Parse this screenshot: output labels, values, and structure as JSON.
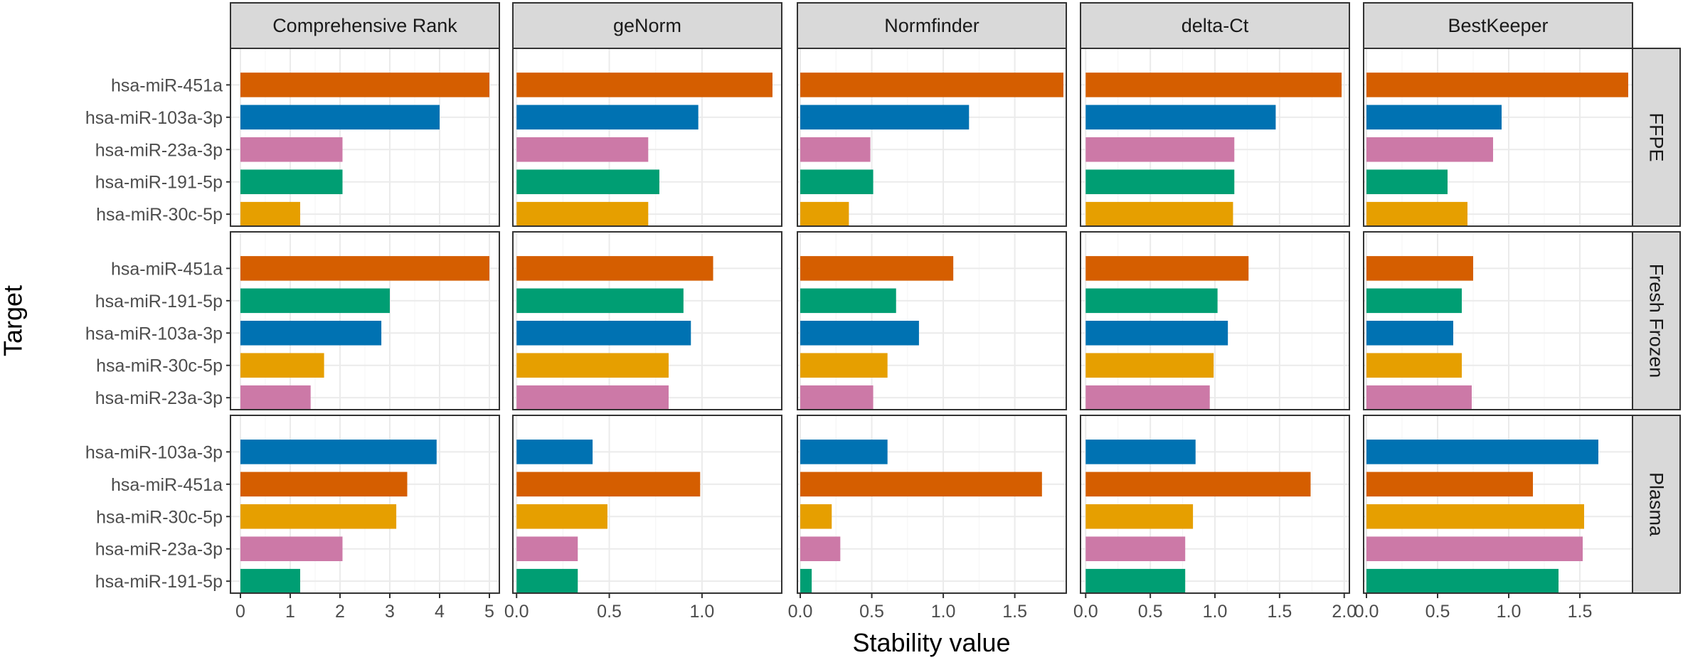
{
  "chart_data": {
    "type": "bar",
    "orientation": "horizontal",
    "xlabel": "Stability value",
    "ylabel": "Target",
    "grid": true,
    "legend": "none",
    "colors": {
      "hsa-miR-451a": "#D55E00",
      "hsa-miR-103a-3p": "#0072B2",
      "hsa-miR-23a-3p": "#CC79A7",
      "hsa-miR-191-5p": "#009E73",
      "hsa-miR-30c-5p": "#E69F00"
    },
    "methods": [
      {
        "name": "Comprehensive Rank",
        "xlim": [
          -0.2,
          5.2
        ],
        "ticks": [
          "0",
          "1",
          "2",
          "3",
          "4",
          "5"
        ]
      },
      {
        "name": "geNorm",
        "xlim": [
          -0.02,
          1.43
        ],
        "ticks": [
          "0.0",
          "0.5",
          "1.0"
        ]
      },
      {
        "name": "Normfinder",
        "xlim": [
          -0.02,
          1.86
        ],
        "ticks": [
          "0.0",
          "0.5",
          "1.0",
          "1.5"
        ]
      },
      {
        "name": "delta-Ct",
        "xlim": [
          -0.04,
          2.04
        ],
        "ticks": [
          "0.0",
          "0.5",
          "1.0",
          "1.5",
          "2.0"
        ]
      },
      {
        "name": "BestKeeper",
        "xlim": [
          -0.02,
          1.87
        ],
        "ticks": [
          "0.0",
          "0.5",
          "1.0",
          "1.5"
        ]
      }
    ],
    "sample_types": [
      {
        "name": "FFPE",
        "targets": [
          "hsa-miR-451a",
          "hsa-miR-103a-3p",
          "hsa-miR-23a-3p",
          "hsa-miR-191-5p",
          "hsa-miR-30c-5p"
        ],
        "values": {
          "Comprehensive Rank": [
            5.0,
            4.0,
            2.05,
            2.05,
            1.2
          ],
          "geNorm": [
            1.38,
            0.98,
            0.71,
            0.77,
            0.71
          ],
          "Normfinder": [
            1.84,
            1.18,
            0.49,
            0.51,
            0.34
          ],
          "delta-Ct": [
            1.98,
            1.47,
            1.15,
            1.15,
            1.14
          ],
          "BestKeeper": [
            1.84,
            0.95,
            0.89,
            0.57,
            0.71
          ]
        }
      },
      {
        "name": "Fresh Frozen",
        "targets": [
          "hsa-miR-451a",
          "hsa-miR-191-5p",
          "hsa-miR-103a-3p",
          "hsa-miR-30c-5p",
          "hsa-miR-23a-3p"
        ],
        "values": {
          "Comprehensive Rank": [
            5.0,
            3.0,
            2.83,
            1.68,
            1.41
          ],
          "geNorm": [
            1.06,
            0.9,
            0.94,
            0.82,
            0.82
          ],
          "Normfinder": [
            1.07,
            0.67,
            0.83,
            0.61,
            0.51
          ],
          "delta-Ct": [
            1.26,
            1.02,
            1.1,
            0.99,
            0.96
          ],
          "BestKeeper": [
            0.75,
            0.67,
            0.61,
            0.67,
            0.74
          ]
        }
      },
      {
        "name": "Plasma",
        "targets": [
          "hsa-miR-103a-3p",
          "hsa-miR-451a",
          "hsa-miR-30c-5p",
          "hsa-miR-23a-3p",
          "hsa-miR-191-5p"
        ],
        "values": {
          "Comprehensive Rank": [
            3.94,
            3.35,
            3.13,
            2.05,
            1.2
          ],
          "geNorm": [
            0.41,
            0.99,
            0.49,
            0.33,
            0.33
          ],
          "Normfinder": [
            0.61,
            1.69,
            0.22,
            0.28,
            0.08
          ],
          "delta-Ct": [
            0.85,
            1.74,
            0.83,
            0.77,
            0.77
          ],
          "BestKeeper": [
            1.63,
            1.17,
            1.53,
            1.52,
            1.35
          ]
        }
      }
    ]
  }
}
